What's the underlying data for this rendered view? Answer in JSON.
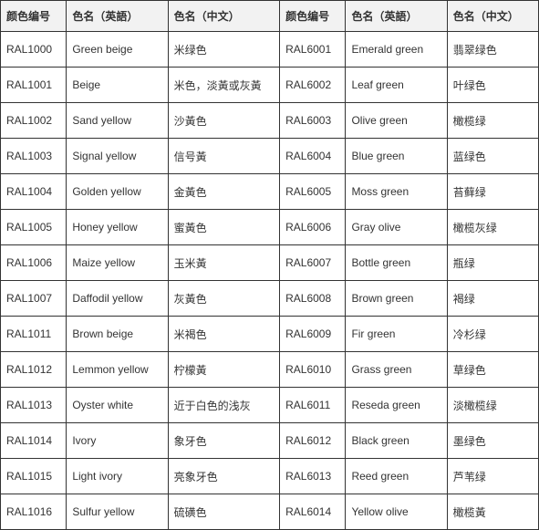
{
  "headers": {
    "code1": "颜色编号",
    "en1": "色名（英語）",
    "cn1": "色名（中文）",
    "code2": "颜色编号",
    "en2": "色名（英語）",
    "cn2": "色名（中文）"
  },
  "rows": [
    {
      "code1": "RAL1000",
      "en1": "Green beige",
      "cn1": "米绿色",
      "code2": "RAL6001",
      "en2": "Emerald green",
      "cn2": "翡翠绿色"
    },
    {
      "code1": "RAL1001",
      "en1": "Beige",
      "cn1": "米色，淡黃或灰黃",
      "code2": "RAL6002",
      "en2": "Leaf green",
      "cn2": "叶绿色"
    },
    {
      "code1": "RAL1002",
      "en1": "Sand yellow",
      "cn1": "沙黃色",
      "code2": "RAL6003",
      "en2": "Olive green",
      "cn2": "橄榄绿"
    },
    {
      "code1": "RAL1003",
      "en1": "Signal yellow",
      "cn1": "信号黃",
      "code2": "RAL6004",
      "en2": "Blue green",
      "cn2": "蓝绿色"
    },
    {
      "code1": "RAL1004",
      "en1": "Golden yellow",
      "cn1": "金黃色",
      "code2": "RAL6005",
      "en2": "Moss green",
      "cn2": "苔藓绿"
    },
    {
      "code1": "RAL1005",
      "en1": "Honey yellow",
      "cn1": "蜜黃色",
      "code2": "RAL6006",
      "en2": "Gray olive",
      "cn2": "橄榄灰绿"
    },
    {
      "code1": "RAL1006",
      "en1": "Maize yellow",
      "cn1": "玉米黃",
      "code2": "RAL6007",
      "en2": "Bottle green",
      "cn2": "瓶绿"
    },
    {
      "code1": "RAL1007",
      "en1": "Daffodil yellow",
      "cn1": "灰黃色",
      "code2": "RAL6008",
      "en2": "Brown green",
      "cn2": "褐绿"
    },
    {
      "code1": "RAL1011",
      "en1": "Brown beige",
      "cn1": "米褐色",
      "code2": "RAL6009",
      "en2": "Fir green",
      "cn2": "冷杉绿"
    },
    {
      "code1": "RAL1012",
      "en1": "Lemmon yellow",
      "cn1": "柠檬黃",
      "code2": "RAL6010",
      "en2": "Grass green",
      "cn2": "草绿色"
    },
    {
      "code1": "RAL1013",
      "en1": "Oyster white",
      "cn1": "近于白色的浅灰",
      "code2": "RAL6011",
      "en2": "Reseda green",
      "cn2": "淡橄榄绿"
    },
    {
      "code1": "RAL1014",
      "en1": "Ivory",
      "cn1": "象牙色",
      "code2": "RAL6012",
      "en2": "Black green",
      "cn2": "墨绿色"
    },
    {
      "code1": "RAL1015",
      "en1": "Light ivory",
      "cn1": "亮象牙色",
      "code2": "RAL6013",
      "en2": "Reed green",
      "cn2": "芦苇绿"
    },
    {
      "code1": "RAL1016",
      "en1": "Sulfur yellow",
      "cn1": "硫磺色",
      "code2": "RAL6014",
      "en2": "Yellow olive",
      "cn2": "橄榄黃"
    }
  ]
}
